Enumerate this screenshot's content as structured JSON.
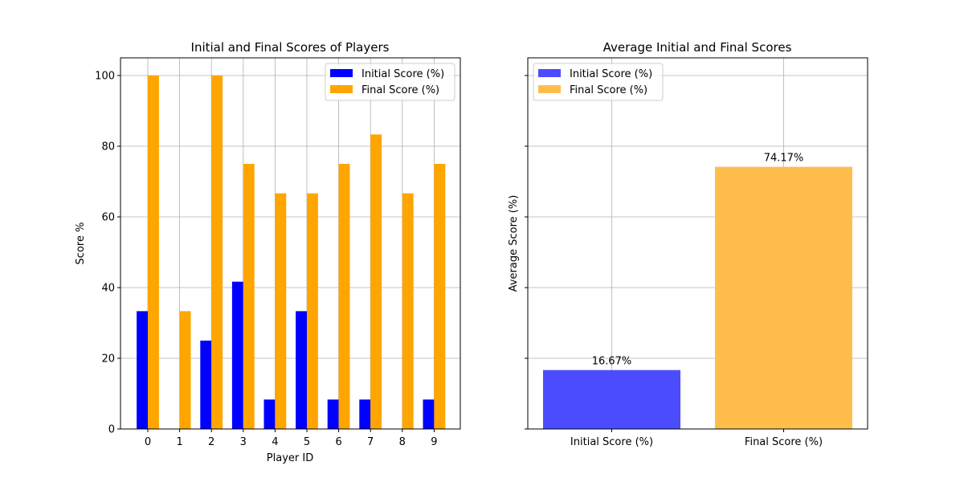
{
  "chart_data": [
    {
      "type": "bar",
      "title": "Initial and Final Scores of Players",
      "xlabel": "Player ID",
      "ylabel": "Score %",
      "categories": [
        "0",
        "1",
        "2",
        "3",
        "4",
        "5",
        "6",
        "7",
        "8",
        "9"
      ],
      "ylim": [
        0,
        105
      ],
      "yticks": [
        "0",
        "20",
        "40",
        "60",
        "80",
        "100"
      ],
      "grid": true,
      "legend_position": "top-right",
      "series": [
        {
          "name": "Initial Score (%)",
          "color": "#0000ff",
          "values": [
            33.33,
            0,
            25,
            41.67,
            8.33,
            33.33,
            8.33,
            8.33,
            0,
            8.33
          ]
        },
        {
          "name": "Final Score (%)",
          "color": "#ffa500",
          "values": [
            100,
            33.33,
            100,
            75,
            66.67,
            66.67,
            75,
            83.33,
            66.67,
            75
          ]
        }
      ]
    },
    {
      "type": "bar",
      "title": "Average Initial and Final Scores",
      "xlabel": "",
      "ylabel": "Average Score (%)",
      "categories": [
        "Initial Score (%)",
        "Final Score (%)"
      ],
      "values": [
        16.67,
        74.17
      ],
      "data_labels": [
        "16.67%",
        "74.17%"
      ],
      "colors": [
        "#4c4cff",
        "#ffbe4c"
      ],
      "ylim": [
        0,
        105
      ],
      "grid": true,
      "legend_position": "top-left",
      "legend": [
        {
          "name": "Initial Score (%)",
          "color": "#4c4cff"
        },
        {
          "name": "Final Score (%)",
          "color": "#ffbe4c"
        }
      ]
    }
  ]
}
